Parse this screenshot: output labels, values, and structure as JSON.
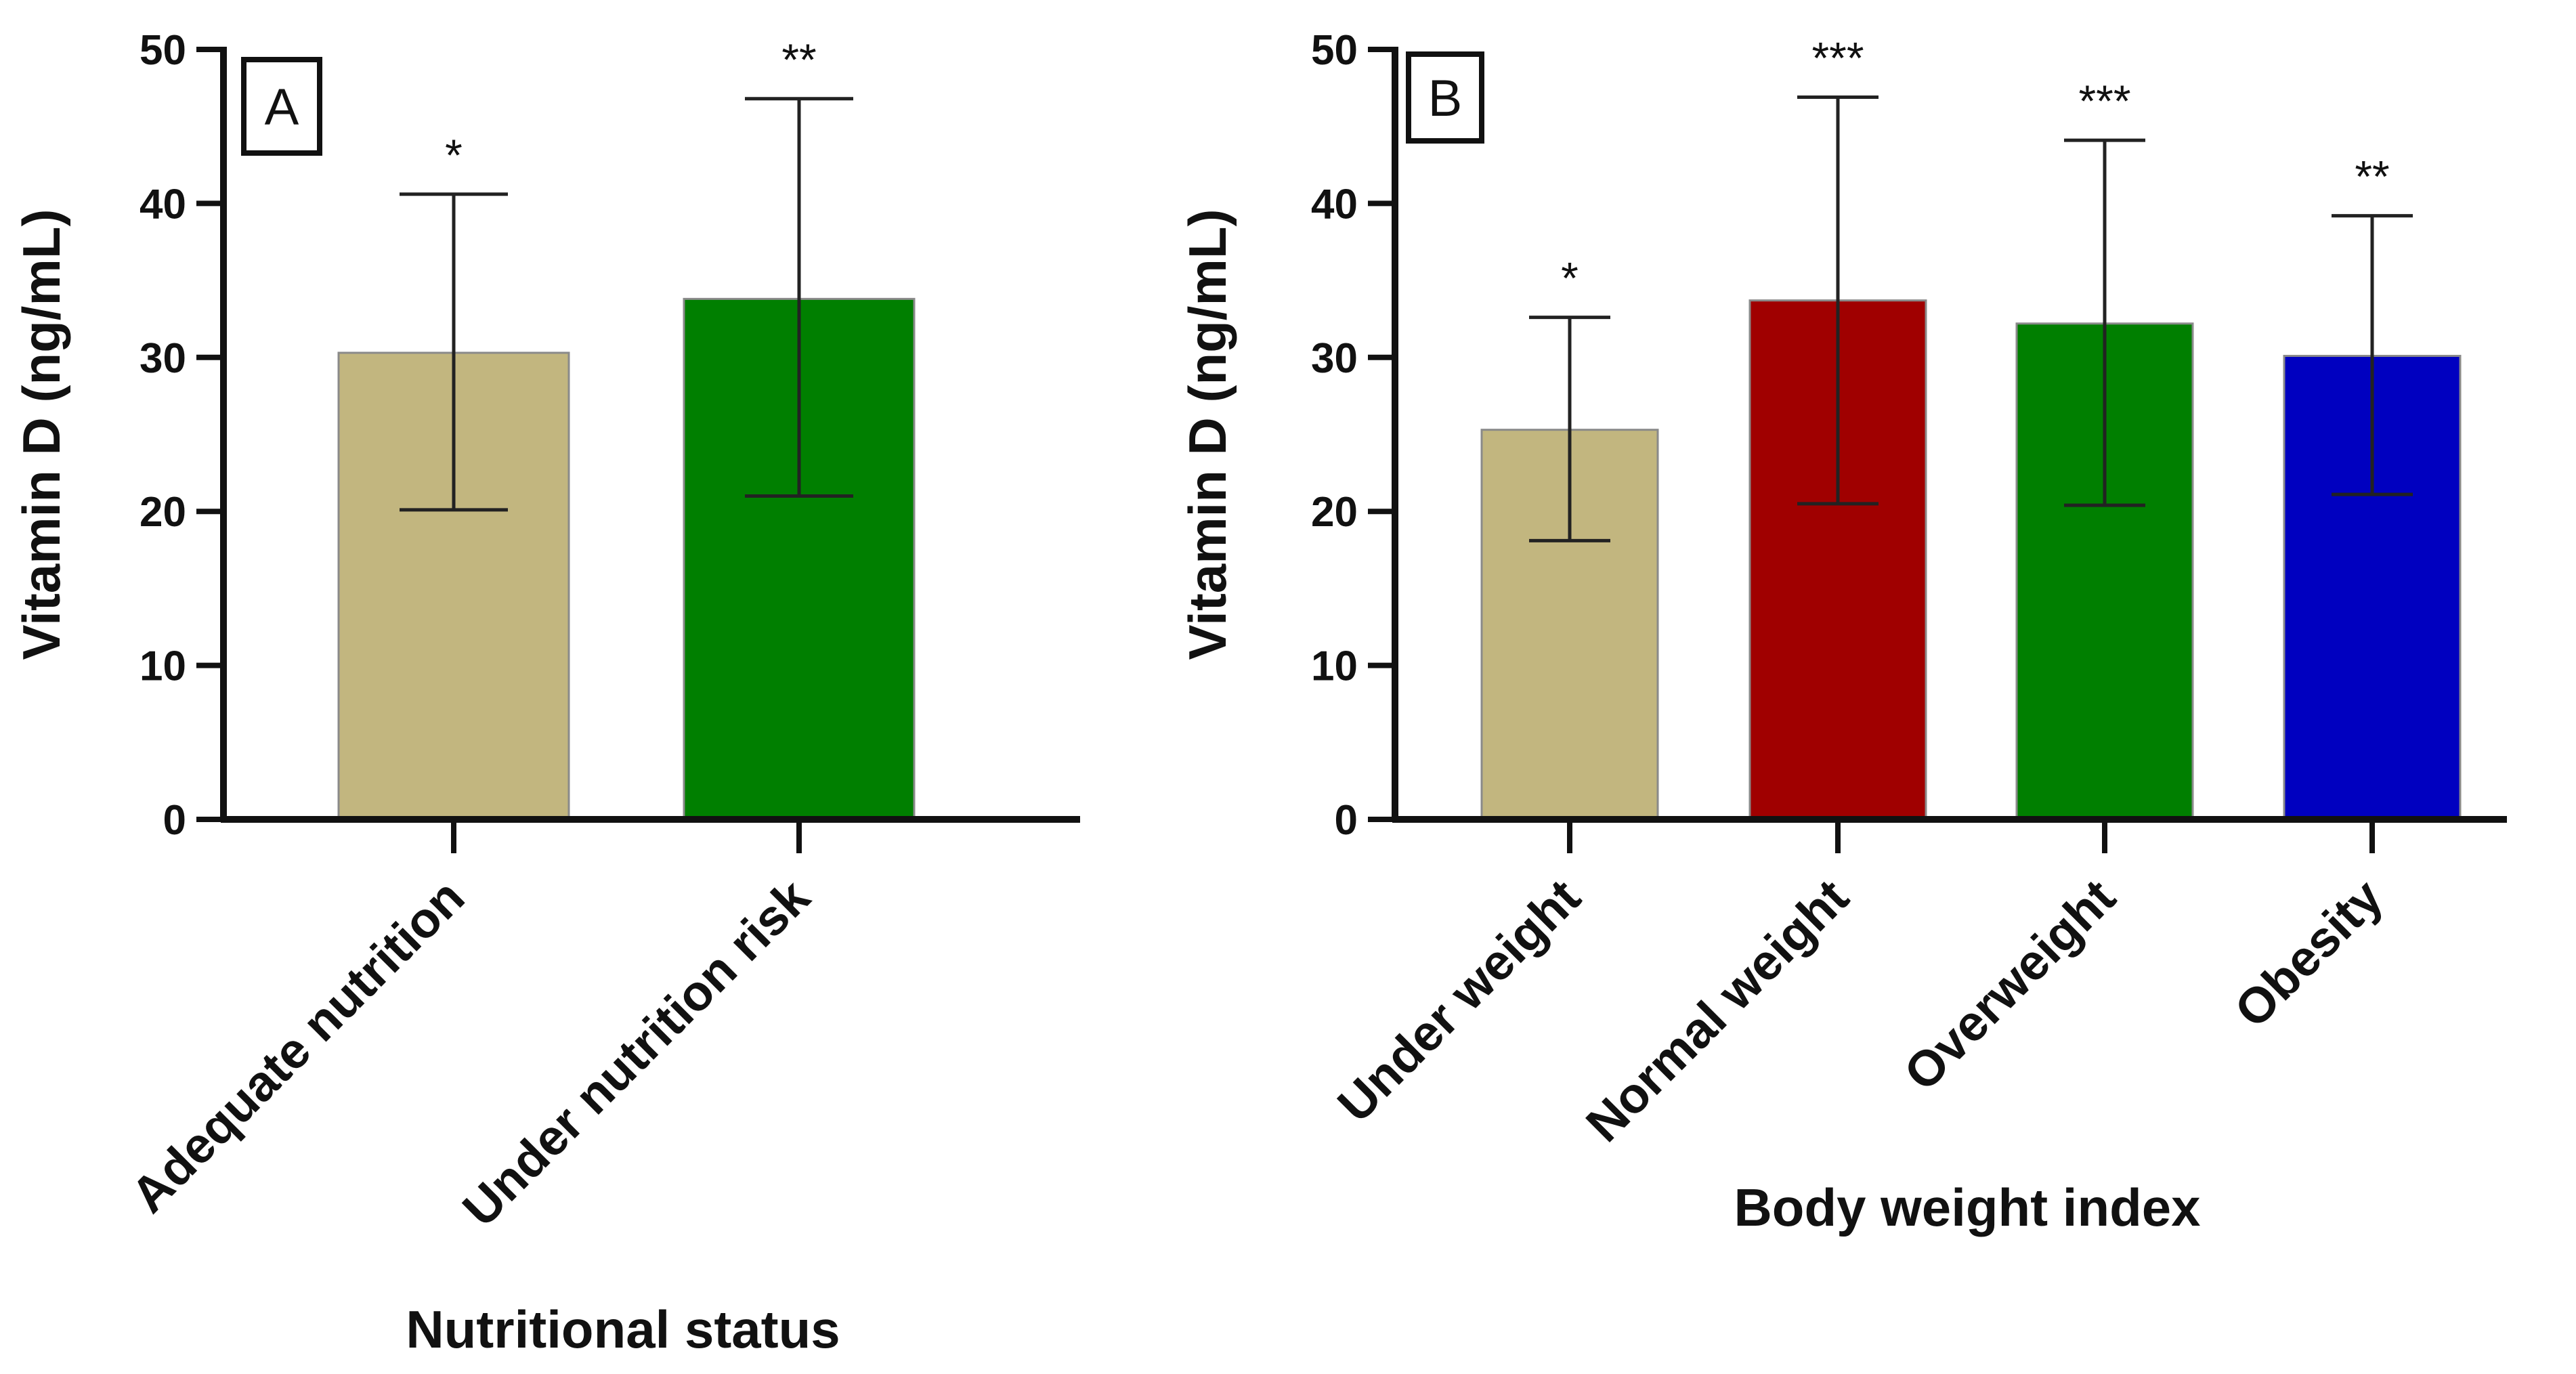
{
  "chart_data": [
    {
      "type": "bar",
      "panel_label": "A",
      "categories": [
        "Adequate nutrition",
        "Under nutrition risk"
      ],
      "values": [
        30.3,
        33.8
      ],
      "error_low": [
        20.1,
        21.0
      ],
      "error_high": [
        40.6,
        46.8
      ],
      "significance": [
        "*",
        "**"
      ],
      "colors": [
        "#c2b67f",
        "#007f00"
      ],
      "xlabel": "Nutritional status",
      "ylabel": "Vitamin D (ng/mL)",
      "ylim": [
        0,
        50
      ],
      "yticks": [
        0,
        10,
        20,
        30,
        40,
        50
      ],
      "title": ""
    },
    {
      "type": "bar",
      "panel_label": "B",
      "categories": [
        "Under weight",
        "Normal weight",
        "Overweight",
        "Obesity"
      ],
      "values": [
        25.3,
        33.7,
        32.2,
        30.1
      ],
      "error_low": [
        18.1,
        20.5,
        20.4,
        21.1
      ],
      "error_high": [
        32.6,
        46.9,
        44.1,
        39.2
      ],
      "significance": [
        "*",
        "***",
        "***",
        "**"
      ],
      "colors": [
        "#c2b67f",
        "#a00000",
        "#007f00",
        "#0000c0"
      ],
      "xlabel": "Body weight index",
      "ylabel": "Vitamin D (ng/mL)",
      "ylim": [
        0,
        50
      ],
      "yticks": [
        0,
        10,
        20,
        30,
        40,
        50
      ],
      "title": ""
    }
  ]
}
